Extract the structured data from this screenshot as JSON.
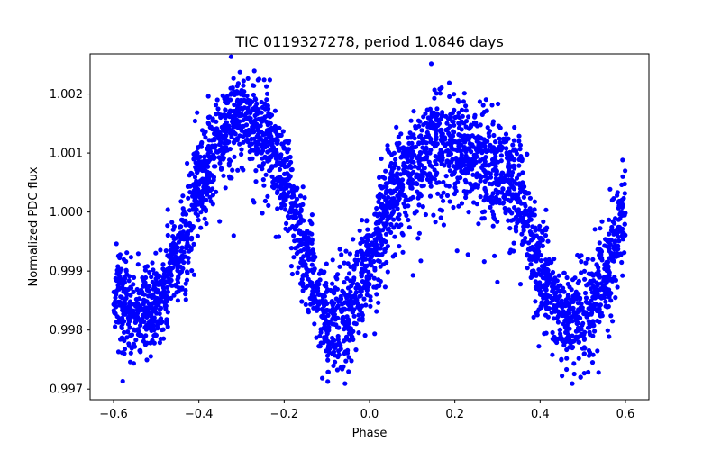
{
  "chart_data": {
    "type": "scatter",
    "title": "TIC 0119327278, period 1.0846 days",
    "xlabel": "Phase",
    "ylabel": "Normalized PDC flux",
    "xlim": [
      -0.655,
      0.655
    ],
    "ylim": [
      0.99682,
      1.00268
    ],
    "xticks": [
      -0.6,
      -0.4,
      -0.2,
      0.0,
      0.2,
      0.4,
      0.6
    ],
    "xtick_labels": [
      "−0.6",
      "−0.4",
      "−0.2",
      "0.0",
      "0.2",
      "0.4",
      "0.6"
    ],
    "yticks": [
      0.997,
      0.998,
      0.999,
      1.0,
      1.001,
      1.002
    ],
    "ytick_labels": [
      "0.997",
      "0.998",
      "0.999",
      "1.000",
      "1.001",
      "1.002"
    ],
    "grid": false,
    "marker_color": "#0000ff",
    "series": [
      {
        "name": "flux",
        "model": "folded light curve, phase -0.60 to 0.60, ~3600 points",
        "trend_phase": [
          -0.6,
          -0.55,
          -0.5,
          -0.45,
          -0.4,
          -0.35,
          -0.3,
          -0.25,
          -0.2,
          -0.15,
          -0.1,
          -0.05,
          0.0,
          0.05,
          0.1,
          0.15,
          0.2,
          0.25,
          0.3,
          0.35,
          0.4,
          0.45,
          0.5,
          0.55,
          0.6
        ],
        "trend_flux": [
          0.9987,
          0.9983,
          0.9984,
          0.9992,
          1.0005,
          1.0013,
          1.0017,
          1.0014,
          1.0007,
          0.9993,
          0.9981,
          0.9983,
          0.9993,
          1.0002,
          1.0008,
          1.0012,
          1.0011,
          1.0009,
          1.0007,
          1.0003,
          0.999,
          0.9982,
          0.9983,
          0.9989,
          1.0
        ],
        "spread": 0.00042,
        "count": 3600
      }
    ]
  }
}
